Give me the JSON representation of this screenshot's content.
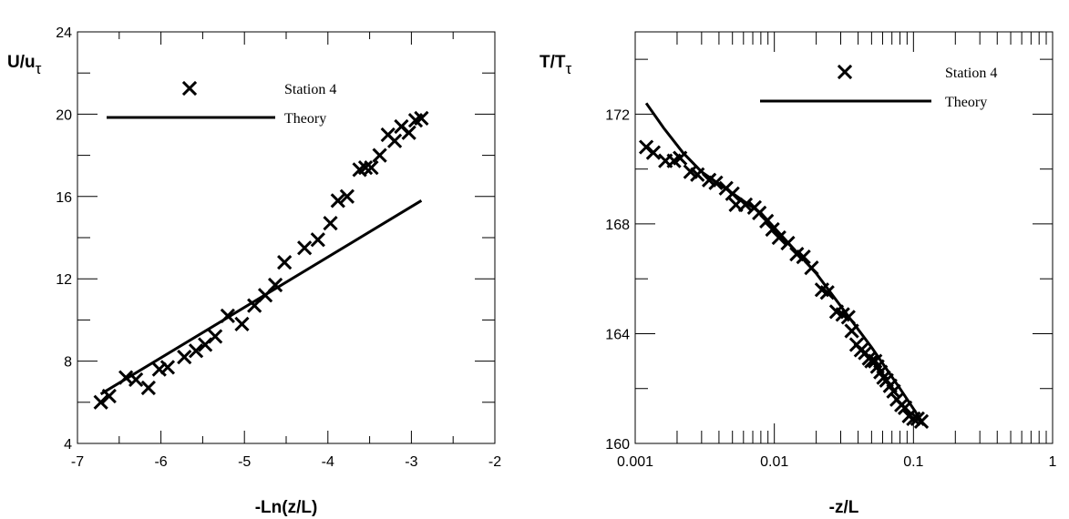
{
  "chart_data": [
    {
      "type": "scatter",
      "x_title": "-Ln(z/L)",
      "y_title": "U/u",
      "y_title_sub": "τ",
      "xlim": [
        -7,
        -2
      ],
      "ylim": [
        4,
        24
      ],
      "x_ticks": [
        "-7",
        "-6",
        "-5",
        "-4",
        "-3",
        "-2"
      ],
      "y_ticks": [
        "4",
        "8",
        "12",
        "16",
        "20",
        "24"
      ],
      "x_tick_values": [
        -7,
        -6,
        -5,
        -4,
        -3,
        -2
      ],
      "y_tick_values": [
        4,
        8,
        12,
        16,
        20,
        24
      ],
      "x_scale": "linear",
      "grid": false,
      "legend_position": "top",
      "series": [
        {
          "name": "Station 4",
          "style": "x-marker",
          "points": [
            [
              -6.72,
              6.0
            ],
            [
              -6.62,
              6.3
            ],
            [
              -6.42,
              7.2
            ],
            [
              -6.3,
              7.1
            ],
            [
              -6.15,
              6.7
            ],
            [
              -6.02,
              7.6
            ],
            [
              -5.92,
              7.7
            ],
            [
              -5.72,
              8.2
            ],
            [
              -5.58,
              8.5
            ],
            [
              -5.47,
              8.8
            ],
            [
              -5.35,
              9.2
            ],
            [
              -5.2,
              10.2
            ],
            [
              -5.03,
              9.8
            ],
            [
              -4.88,
              10.7
            ],
            [
              -4.75,
              11.2
            ],
            [
              -4.63,
              11.7
            ],
            [
              -4.52,
              12.8
            ],
            [
              -4.28,
              13.5
            ],
            [
              -4.12,
              13.9
            ],
            [
              -3.97,
              14.7
            ],
            [
              -3.88,
              15.8
            ],
            [
              -3.77,
              16.0
            ],
            [
              -3.62,
              17.3
            ],
            [
              -3.55,
              17.4
            ],
            [
              -3.48,
              17.4
            ],
            [
              -3.38,
              18.0
            ],
            [
              -3.28,
              19.0
            ],
            [
              -3.2,
              18.7
            ],
            [
              -3.12,
              19.4
            ],
            [
              -3.03,
              19.1
            ],
            [
              -2.95,
              19.7
            ],
            [
              -2.88,
              19.8
            ]
          ]
        },
        {
          "name": "Theory",
          "style": "line",
          "points": [
            [
              -6.72,
              6.4
            ],
            [
              -2.88,
              15.8
            ]
          ]
        }
      ]
    },
    {
      "type": "scatter",
      "x_title": "-z/L",
      "y_title": "T/T",
      "y_title_sub": "τ",
      "xlim": [
        0.001,
        1
      ],
      "ylim": [
        160,
        175
      ],
      "x_ticks": [
        "0.001",
        "0.01",
        "0.1",
        "1"
      ],
      "y_ticks": [
        "160",
        "164",
        "168",
        "172"
      ],
      "x_tick_values": [
        0.001,
        0.01,
        0.1,
        1
      ],
      "y_tick_values": [
        160,
        164,
        168,
        172
      ],
      "x_scale": "log",
      "grid": false,
      "legend_position": "top-right",
      "series": [
        {
          "name": "Station 4",
          "style": "x-marker",
          "points": [
            [
              0.0012,
              170.8
            ],
            [
              0.00135,
              170.6
            ],
            [
              0.00165,
              170.3
            ],
            [
              0.0019,
              170.3
            ],
            [
              0.0021,
              170.4
            ],
            [
              0.0025,
              169.9
            ],
            [
              0.0028,
              169.8
            ],
            [
              0.0034,
              169.6
            ],
            [
              0.0038,
              169.5
            ],
            [
              0.0045,
              169.3
            ],
            [
              0.005,
              169.1
            ],
            [
              0.0053,
              168.7
            ],
            [
              0.0062,
              168.7
            ],
            [
              0.0072,
              168.6
            ],
            [
              0.0078,
              168.4
            ],
            [
              0.0088,
              168.1
            ],
            [
              0.0097,
              167.8
            ],
            [
              0.0108,
              167.5
            ],
            [
              0.0125,
              167.3
            ],
            [
              0.0145,
              166.9
            ],
            [
              0.0162,
              166.8
            ],
            [
              0.0185,
              166.4
            ],
            [
              0.022,
              165.6
            ],
            [
              0.024,
              165.5
            ],
            [
              0.028,
              164.8
            ],
            [
              0.031,
              164.7
            ],
            [
              0.034,
              164.6
            ],
            [
              0.036,
              164.1
            ],
            [
              0.039,
              163.6
            ],
            [
              0.042,
              163.4
            ],
            [
              0.045,
              163.3
            ],
            [
              0.048,
              163.1
            ],
            [
              0.05,
              163.0
            ],
            [
              0.053,
              163.0
            ],
            [
              0.055,
              162.8
            ],
            [
              0.058,
              162.6
            ],
            [
              0.061,
              162.4
            ],
            [
              0.064,
              162.3
            ],
            [
              0.068,
              162.1
            ],
            [
              0.072,
              161.9
            ],
            [
              0.076,
              161.6
            ],
            [
              0.082,
              161.4
            ],
            [
              0.087,
              161.3
            ],
            [
              0.093,
              161.0
            ],
            [
              0.1,
              160.9
            ],
            [
              0.107,
              160.9
            ],
            [
              0.114,
              160.8
            ]
          ]
        },
        {
          "name": "Theory",
          "style": "line",
          "points": [
            [
              0.0012,
              172.4
            ],
            [
              0.0016,
              171.5
            ],
            [
              0.0022,
              170.6
            ],
            [
              0.003,
              169.9
            ],
            [
              0.008,
              168.4
            ],
            [
              0.02,
              166.2
            ],
            [
              0.05,
              163.5
            ],
            [
              0.08,
              162.0
            ],
            [
              0.115,
              160.8
            ]
          ]
        }
      ]
    }
  ]
}
